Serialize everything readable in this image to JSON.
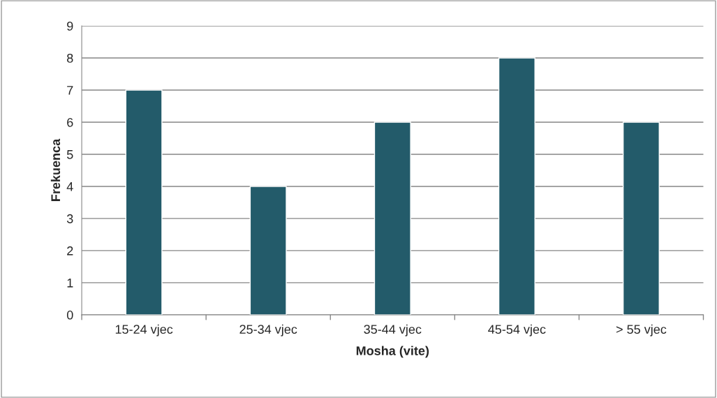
{
  "chart_data": {
    "type": "bar",
    "xlabel": "Mosha (vite)",
    "ylabel": "Frekuenca",
    "categories": [
      "15-24 vjec",
      "25-34 vjec",
      "35-44 vjec",
      "45-54 vjec",
      "> 55 vjec"
    ],
    "values": [
      7,
      4,
      6,
      8,
      6
    ],
    "color": "#235b6a",
    "ylim": [
      0,
      9
    ],
    "yticks": [
      0,
      1,
      2,
      3,
      4,
      5,
      6,
      7,
      8,
      9
    ],
    "grid": "y",
    "legend": false
  }
}
